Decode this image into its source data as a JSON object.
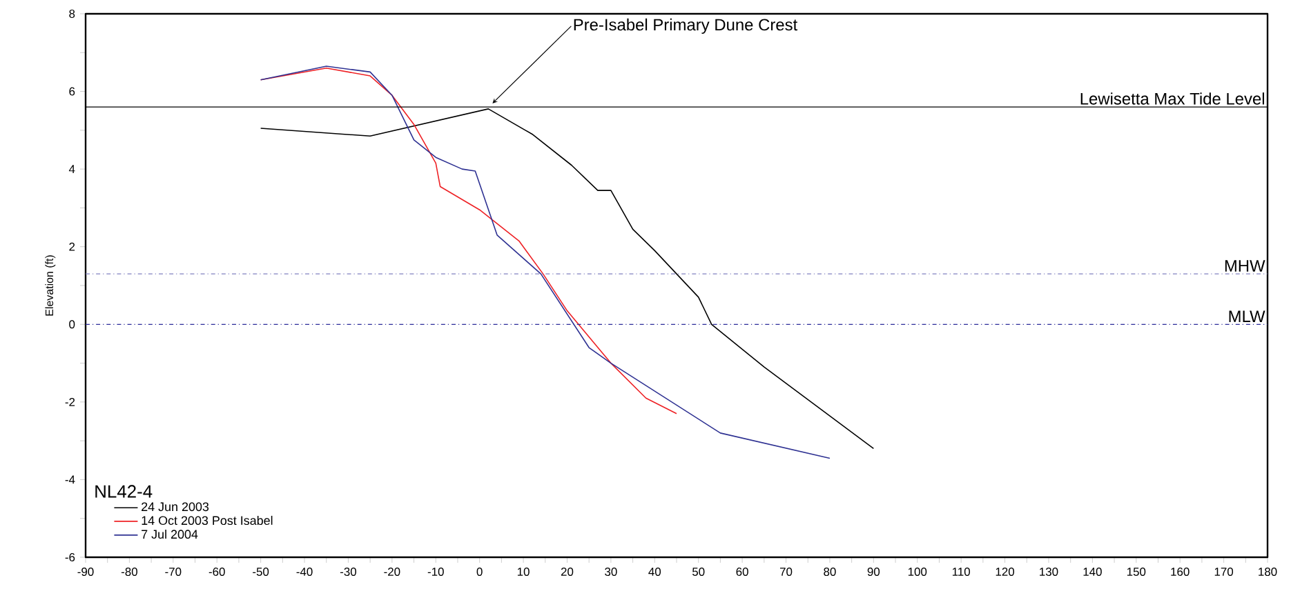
{
  "chart_data": {
    "type": "line",
    "ylabel": "Elevation (ft)",
    "legend_title": "NL42-4",
    "legend": "bottom left",
    "grid": false,
    "marker": "none",
    "xlim": [
      -90,
      180
    ],
    "ylim": [
      -6,
      8
    ],
    "xticks": [
      -90,
      {
        "value": -85,
        "label": null
      },
      -80,
      {
        "value": -75,
        "label": null
      },
      -70,
      {
        "value": -65,
        "label": null
      },
      -60,
      {
        "value": -55,
        "label": null
      },
      -50,
      {
        "value": -45,
        "label": null
      },
      -40,
      {
        "value": -35,
        "label": null
      },
      -30,
      {
        "value": -25,
        "label": null
      },
      -20,
      {
        "value": -15,
        "label": null
      },
      -10,
      {
        "value": -5,
        "label": null
      },
      0,
      {
        "value": 5,
        "label": null
      },
      10,
      {
        "value": 15,
        "label": null
      },
      20,
      {
        "value": 25,
        "label": null
      },
      30,
      {
        "value": 35,
        "label": null
      },
      40,
      {
        "value": 45,
        "label": null
      },
      50,
      {
        "value": 55,
        "label": null
      },
      60,
      {
        "value": 65,
        "label": null
      },
      70,
      {
        "value": 75,
        "label": null
      },
      80,
      {
        "value": 85,
        "label": null
      },
      90,
      {
        "value": 95,
        "label": null
      },
      100,
      {
        "value": 105,
        "label": null
      },
      110,
      {
        "value": 115,
        "label": null
      },
      120,
      {
        "value": 125,
        "label": null
      },
      130,
      {
        "value": 135,
        "label": null
      },
      140,
      {
        "value": 145,
        "label": null
      },
      150,
      {
        "value": 155,
        "label": null
      },
      160,
      {
        "value": 165,
        "label": null
      },
      170,
      {
        "value": 175,
        "label": null
      },
      180
    ],
    "yticks": [
      -6,
      {
        "value": -5,
        "label": null
      },
      -4,
      {
        "value": -3,
        "label": null
      },
      -2,
      {
        "value": -1,
        "label": null
      },
      0,
      {
        "value": 1,
        "label": null
      },
      2,
      {
        "value": 3,
        "label": null
      },
      4,
      {
        "value": 5,
        "label": null
      },
      6,
      {
        "value": 7,
        "label": null
      },
      8
    ],
    "series": [
      {
        "name": "24 Jun 2003",
        "color": "#000000",
        "x": [
          -50,
          -25,
          2,
          12,
          21,
          27,
          30,
          35,
          40,
          50,
          53,
          65,
          90
        ],
        "values": [
          5.05,
          4.85,
          5.55,
          4.9,
          4.1,
          3.45,
          3.45,
          2.45,
          1.9,
          0.7,
          0.0,
          -1.1,
          -3.2
        ]
      },
      {
        "name": "14 Oct 2003 Post Isabel",
        "color": "#ee2024",
        "x": [
          -50,
          -35,
          -25,
          -20,
          -15,
          -10,
          -9,
          0,
          9,
          14.5,
          20,
          30,
          38,
          45
        ],
        "values": [
          6.3,
          6.6,
          6.4,
          5.9,
          5.15,
          4.15,
          3.55,
          2.95,
          2.15,
          1.3,
          0.35,
          -1.0,
          -1.9,
          -2.3
        ]
      },
      {
        "name": "7 Jul 2004",
        "color": "#2e3192",
        "x": [
          -50,
          -35,
          -25,
          -20,
          -15,
          -10,
          -4,
          -1,
          4,
          14,
          25,
          30,
          55,
          80
        ],
        "values": [
          6.3,
          6.65,
          6.5,
          5.9,
          4.75,
          4.3,
          4.0,
          3.95,
          2.3,
          1.3,
          -0.6,
          -1.0,
          -2.8,
          -3.45
        ]
      }
    ],
    "ref_lines": [
      {
        "axis": "y",
        "value": 5.6,
        "label": "Lewisetta Max Tide Level",
        "color": "#000000",
        "line_style": "solid"
      },
      {
        "axis": "y",
        "value": 1.3,
        "label": "MHW",
        "color": "#8080c0",
        "line_style": "dashdot"
      },
      {
        "axis": "y",
        "value": 0,
        "label": "MLW",
        "color": "#2b2b99",
        "line_style": "dashdot"
      }
    ],
    "annotations": [
      {
        "text": "Pre-Isabel Primary Dune Crest",
        "x": 2,
        "y": 5.55
      }
    ]
  }
}
